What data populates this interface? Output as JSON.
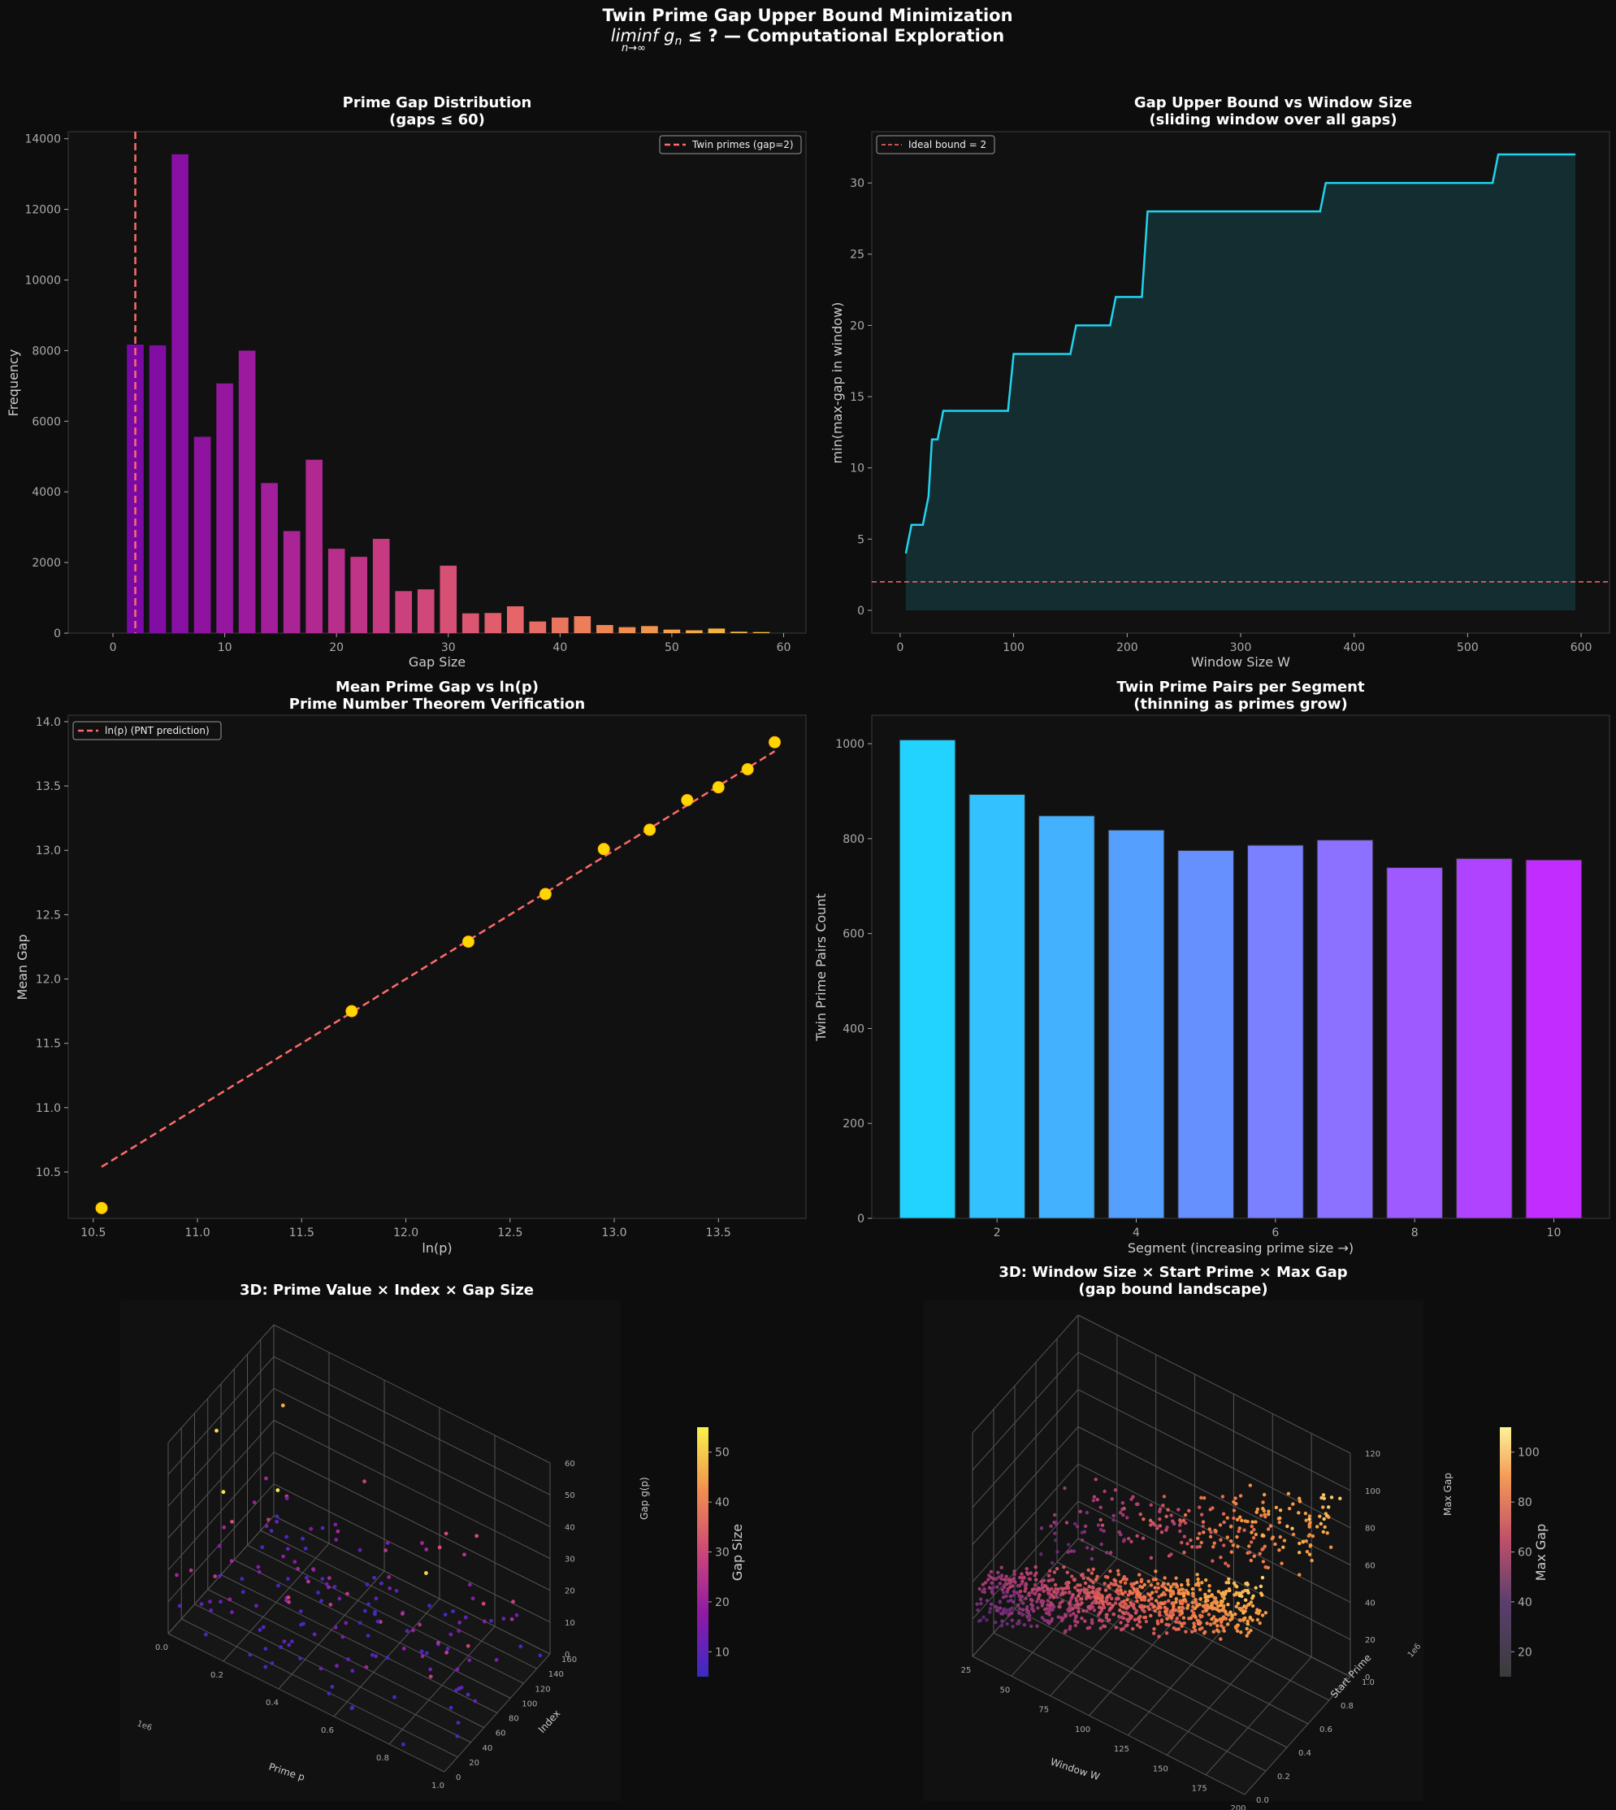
{
  "figure": {
    "title_line1": "Twin Prime Gap Upper Bound Minimization",
    "title_line2_math": "liminf g",
    "title_line2_rest": " ≤ ?  —  Computational Exploration",
    "title_sub_limit": "n→∞",
    "title_sub_n": "n",
    "background": "#0d0d0d",
    "axes_bg": "#111111"
  },
  "chart_data": [
    {
      "id": "gap_distribution",
      "type": "bar",
      "title_line1": "Prime Gap Distribution",
      "title_line2": "(gaps ≤ 60)",
      "xlabel": "Gap Size",
      "ylabel": "Frequency",
      "xlim": [
        -4,
        62
      ],
      "ylim": [
        0,
        14200
      ],
      "xticks": [
        0,
        10,
        20,
        30,
        40,
        50,
        60
      ],
      "yticks": [
        0,
        2000,
        4000,
        6000,
        8000,
        10000,
        12000,
        14000
      ],
      "x": [
        2,
        4,
        6,
        8,
        10,
        12,
        14,
        16,
        18,
        20,
        22,
        24,
        26,
        28,
        30,
        32,
        34,
        36,
        38,
        40,
        42,
        44,
        46,
        48,
        50,
        52,
        54,
        56,
        58
      ],
      "values": [
        8170,
        8150,
        13560,
        5560,
        7070,
        8000,
        4250,
        2890,
        4910,
        2390,
        2160,
        2670,
        1190,
        1240,
        1910,
        560,
        570,
        760,
        330,
        440,
        480,
        230,
        170,
        200,
        100,
        80,
        130,
        40,
        30
      ],
      "colormap": "plasma",
      "vline": {
        "x": 2,
        "color": "#ff6b6b",
        "label": "Twin primes (gap=2)"
      },
      "legend_position": "top-right"
    },
    {
      "id": "upper_bound_window",
      "type": "line",
      "title_line1": "Gap Upper Bound vs Window Size",
      "title_line2": "(sliding window over all gaps)",
      "xlabel": "Window Size W",
      "ylabel": "min(max-gap in window)",
      "xlim": [
        -25,
        625
      ],
      "ylim": [
        -1.6,
        33.6
      ],
      "xticks": [
        0,
        100,
        200,
        300,
        400,
        500,
        600
      ],
      "yticks": [
        0,
        5,
        10,
        15,
        20,
        25,
        30
      ],
      "steps": [
        [
          5,
          4
        ],
        [
          10,
          6
        ],
        [
          20,
          6
        ],
        [
          25,
          8
        ],
        [
          28,
          12
        ],
        [
          33,
          12
        ],
        [
          38,
          14
        ],
        [
          95,
          14
        ],
        [
          100,
          18
        ],
        [
          150,
          18
        ],
        [
          155,
          20
        ],
        [
          185,
          20
        ],
        [
          190,
          22
        ],
        [
          213,
          22
        ],
        [
          218,
          28
        ],
        [
          370,
          28
        ],
        [
          375,
          30
        ],
        [
          522,
          30
        ],
        [
          527,
          32
        ],
        [
          595,
          32
        ]
      ],
      "line_color": "#22d3ee",
      "hline": {
        "y": 2,
        "color": "#ff6b6b",
        "label": "Ideal bound = 2"
      },
      "legend_position": "top-left"
    },
    {
      "id": "mean_gap_vs_ln",
      "type": "scatter",
      "title_line1": "Mean Prime Gap vs ln(p)",
      "title_line2": "Prime Number Theorem Verification",
      "xlabel": "ln(p)",
      "ylabel": "Mean Gap",
      "xlim": [
        10.38,
        13.92
      ],
      "ylim": [
        10.14,
        14.05
      ],
      "xticks": [
        10.5,
        11.0,
        11.5,
        12.0,
        12.5,
        13.0,
        13.5
      ],
      "yticks": [
        10.5,
        11.0,
        11.5,
        12.0,
        12.5,
        13.0,
        13.5,
        14.0
      ],
      "points": [
        [
          10.54,
          10.22
        ],
        [
          11.74,
          11.75
        ],
        [
          12.3,
          12.29
        ],
        [
          12.67,
          12.66
        ],
        [
          12.95,
          13.01
        ],
        [
          13.17,
          13.16
        ],
        [
          13.35,
          13.39
        ],
        [
          13.5,
          13.49
        ],
        [
          13.64,
          13.63
        ],
        [
          13.77,
          13.84
        ]
      ],
      "point_color": "#ffd700",
      "fit_line": {
        "x": [
          10.54,
          13.77
        ],
        "y": [
          10.54,
          13.77
        ],
        "color": "#ff6b6b",
        "label": "ln(p) (PNT prediction)"
      },
      "legend_position": "top-left"
    },
    {
      "id": "twin_pairs_segment",
      "type": "bar",
      "title_line1": "Twin Prime Pairs per Segment",
      "title_line2": "(thinning as primes grow)",
      "xlabel": "Segment (increasing prime size →)",
      "ylabel": "Twin Prime Pairs Count",
      "xlim": [
        0.2,
        10.8
      ],
      "ylim": [
        0,
        1060
      ],
      "xticks": [
        2,
        4,
        6,
        8,
        10
      ],
      "yticks": [
        0,
        200,
        400,
        600,
        800,
        1000
      ],
      "categories": [
        1,
        2,
        3,
        4,
        5,
        6,
        7,
        8,
        9,
        10
      ],
      "values": [
        1008,
        893,
        848,
        818,
        775,
        786,
        797,
        739,
        758,
        755
      ],
      "colormap": "cool"
    },
    {
      "id": "scatter3d_gap",
      "type": "scatter",
      "title": "3D: Prime Value × Index × Gap Size",
      "xlabel": "Prime p",
      "ylabel": "Index",
      "zlabel": "Gap g(p)",
      "x_offset_label": "1e6",
      "xticks": [
        "0.0",
        "0.2",
        "0.4",
        "0.6",
        "0.8",
        "1.0"
      ],
      "yticks": [
        "0",
        "20",
        "40",
        "60",
        "80",
        "100",
        "120",
        "140",
        "160"
      ],
      "zticks": [
        "0",
        "10",
        "20",
        "30",
        "40",
        "50",
        "60"
      ],
      "colorbar_label": "Gap Size",
      "colorbar_ticks": [
        "10",
        "20",
        "30",
        "40",
        "50"
      ],
      "colormap": "plasma"
    },
    {
      "id": "scatter3d_window",
      "type": "scatter",
      "title_line1": "3D: Window Size × Start Prime × Max Gap",
      "title_line2": "(gap bound landscape)",
      "xlabel": "Window W",
      "ylabel": "Start Prime",
      "zlabel": "Max Gap",
      "y_offset_label": "1e6",
      "xticks": [
        "25",
        "50",
        "75",
        "100",
        "125",
        "150",
        "175",
        "200"
      ],
      "yticks": [
        "0.0",
        "0.2",
        "0.4",
        "0.6",
        "0.8",
        "1.0"
      ],
      "zticks": [
        "0",
        "20",
        "40",
        "60",
        "80",
        "100",
        "120"
      ],
      "colorbar_label": "Max Gap",
      "colorbar_ticks": [
        "20",
        "40",
        "60",
        "80",
        "100"
      ],
      "colormap": "magma"
    }
  ]
}
